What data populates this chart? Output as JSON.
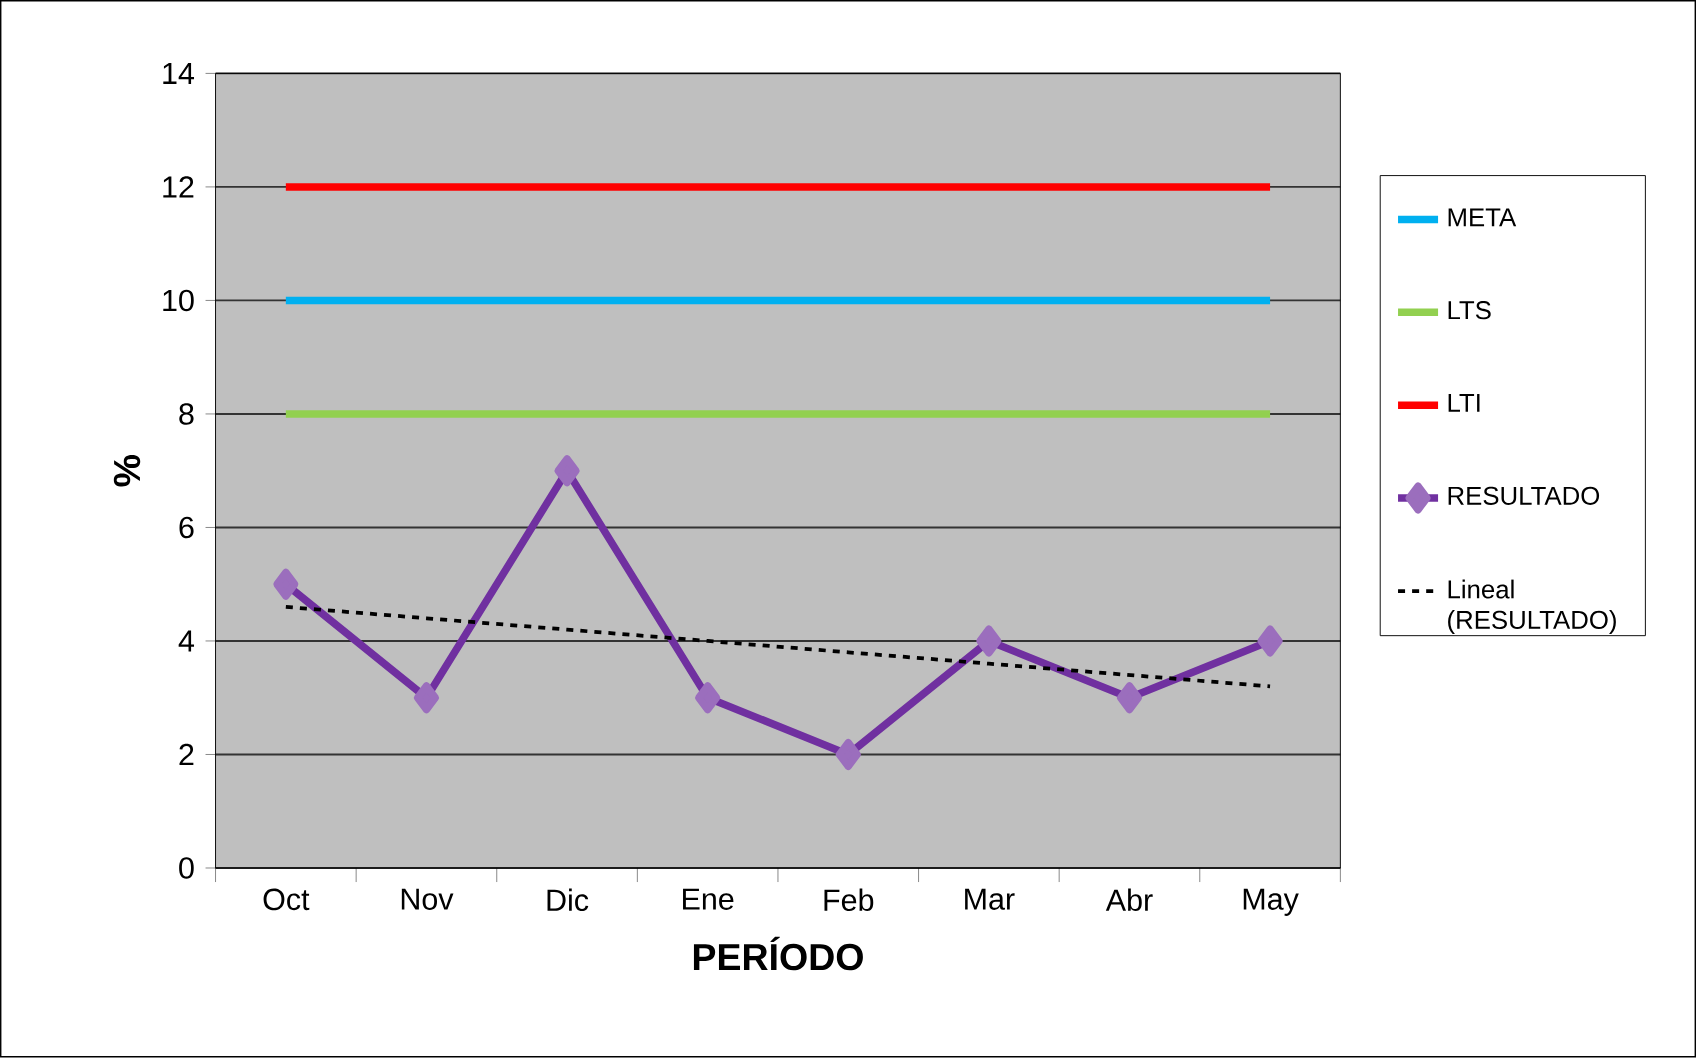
{
  "chart_data": {
    "type": "line",
    "xlabel": "PERÍODO",
    "ylabel": "%",
    "categories": [
      "Oct",
      "Nov",
      "Dic",
      "Ene",
      "Feb",
      "Mar",
      "Abr",
      "May"
    ],
    "series": [
      {
        "name": "META",
        "color": "#00b0f0",
        "values": [
          10,
          10,
          10,
          10,
          10,
          10,
          10,
          10
        ],
        "marker": "none"
      },
      {
        "name": "LTS",
        "color": "#92d050",
        "values": [
          8,
          8,
          8,
          8,
          8,
          8,
          8,
          8
        ],
        "marker": "none"
      },
      {
        "name": "LTI",
        "color": "#ff0000",
        "values": [
          12,
          12,
          12,
          12,
          12,
          12,
          12,
          12
        ],
        "marker": "none"
      },
      {
        "name": "RESULTADO",
        "color": "#7030a0",
        "values": [
          5,
          3,
          7,
          3,
          2,
          4,
          3,
          4
        ],
        "marker": "diamond"
      },
      {
        "name": "Lineal (RESULTADO)",
        "color": "#000000",
        "values": [
          4.6,
          4.4,
          4.2,
          4.0,
          3.8,
          3.6,
          3.4,
          3.2
        ],
        "marker": "none",
        "line_style": "dashed"
      }
    ],
    "ylim": [
      0,
      14
    ],
    "yticks": [
      0,
      2,
      4,
      6,
      8,
      10,
      12,
      14
    ],
    "grid": "y",
    "legend": "right"
  }
}
